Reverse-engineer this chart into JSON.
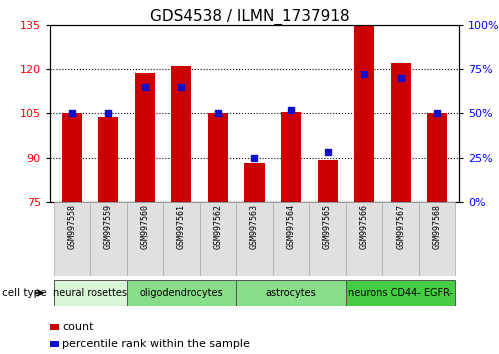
{
  "title": "GDS4538 / ILMN_1737918",
  "samples": [
    "GSM997558",
    "GSM997559",
    "GSM997560",
    "GSM997561",
    "GSM997562",
    "GSM997563",
    "GSM997564",
    "GSM997565",
    "GSM997566",
    "GSM997567",
    "GSM997568"
  ],
  "bar_values": [
    105.2,
    103.8,
    118.5,
    121.0,
    105.0,
    88.0,
    105.3,
    89.2,
    134.5,
    122.0,
    105.1
  ],
  "percentile_values": [
    50,
    50,
    65,
    65,
    50,
    25,
    52,
    28,
    72,
    70,
    50
  ],
  "ylim_left": [
    75,
    135
  ],
  "ylim_right": [
    0,
    100
  ],
  "yticks_left": [
    75,
    90,
    105,
    120,
    135
  ],
  "yticks_right": [
    0,
    25,
    50,
    75,
    100
  ],
  "bar_color": "#cc0000",
  "dot_color": "#1010cc",
  "cell_types": [
    {
      "label": "neural rosettes",
      "span": [
        0,
        2
      ],
      "color": "#d8f5d8"
    },
    {
      "label": "oligodendrocytes",
      "span": [
        2,
        5
      ],
      "color": "#88dd88"
    },
    {
      "label": "astrocytes",
      "span": [
        5,
        8
      ],
      "color": "#88dd88"
    },
    {
      "label": "neurons CD44- EGFR-",
      "span": [
        8,
        11
      ],
      "color": "#44cc44"
    }
  ],
  "cell_type_label": "cell type",
  "legend_count": "count",
  "legend_percentile": "percentile rank within the sample",
  "bg_color": "#ffffff",
  "plot_bg_color": "#ffffff",
  "title_fontsize": 11,
  "tick_fontsize": 8,
  "sample_fontsize": 6,
  "ct_fontsize": 7
}
